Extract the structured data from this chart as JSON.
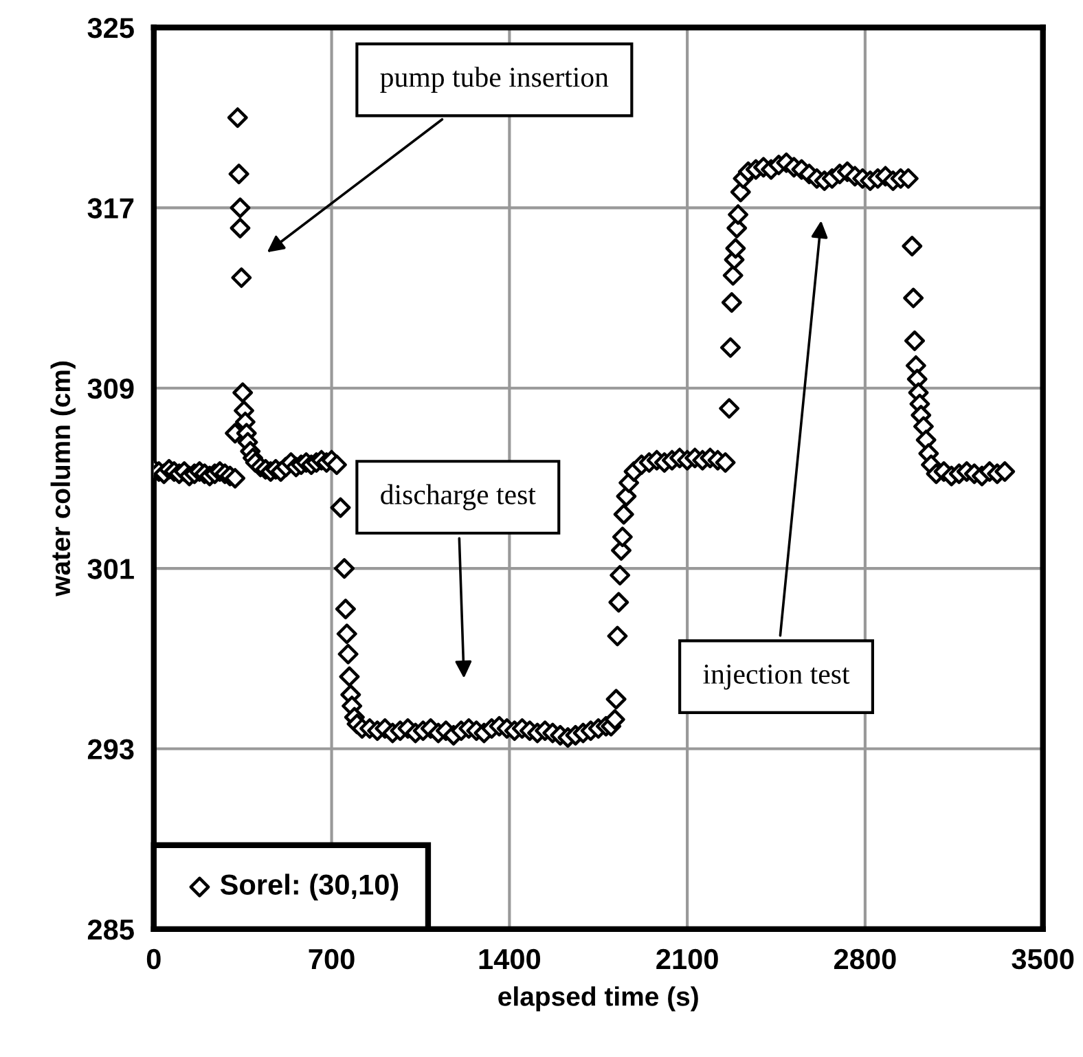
{
  "chart_data": {
    "type": "scatter",
    "xlabel": "elapsed time (s)",
    "ylabel": "water column (cm)",
    "xlim": [
      0,
      3500
    ],
    "xticks": [
      0,
      700,
      1400,
      2100,
      2800,
      3500
    ],
    "ylim": [
      285,
      325
    ],
    "yticks": [
      285,
      293,
      301,
      309,
      317,
      325
    ],
    "grid": true,
    "legend": "bottom left",
    "marker": "diamond",
    "annotations": [
      "pump tube insertion",
      "discharge test",
      "injection test"
    ],
    "series": [
      {
        "name": "Sorel: (30,10)",
        "color": "#000000",
        "x": [
          0,
          20,
          40,
          60,
          80,
          100,
          120,
          140,
          160,
          180,
          200,
          220,
          240,
          260,
          280,
          300,
          320,
          330,
          335,
          340,
          340,
          345,
          320,
          350,
          355,
          360,
          365,
          370,
          380,
          390,
          400,
          420,
          440,
          460,
          480,
          500,
          520,
          540,
          560,
          580,
          600,
          620,
          640,
          660,
          680,
          700,
          720,
          735,
          750,
          755,
          760,
          765,
          770,
          775,
          780,
          790,
          800,
          820,
          850,
          880,
          910,
          940,
          970,
          1000,
          1030,
          1060,
          1090,
          1120,
          1150,
          1180,
          1210,
          1240,
          1270,
          1300,
          1330,
          1360,
          1390,
          1420,
          1450,
          1480,
          1510,
          1540,
          1570,
          1600,
          1630,
          1660,
          1690,
          1720,
          1750,
          1780,
          1800,
          1815,
          1820,
          1825,
          1830,
          1835,
          1840,
          1845,
          1850,
          1860,
          1870,
          1890,
          1920,
          1950,
          1980,
          2010,
          2040,
          2070,
          2100,
          2130,
          2160,
          2190,
          2220,
          2250,
          2265,
          2270,
          2275,
          2280,
          2285,
          2290,
          2295,
          2300,
          2310,
          2320,
          2340,
          2370,
          2400,
          2430,
          2460,
          2490,
          2520,
          2550,
          2580,
          2610,
          2640,
          2670,
          2700,
          2730,
          2760,
          2790,
          2820,
          2850,
          2880,
          2910,
          2940,
          2970,
          2985,
          2990,
          2995,
          3000,
          3005,
          3010,
          3015,
          3020,
          3030,
          3040,
          3050,
          3060,
          3080,
          3110,
          3140,
          3170,
          3200,
          3230,
          3260,
          3290,
          3320,
          3350
        ],
        "values": [
          305.4,
          305.3,
          305.2,
          305.4,
          305.3,
          305.2,
          305.3,
          305.1,
          305.2,
          305.3,
          305.2,
          305.1,
          305.2,
          305.3,
          305.2,
          305.1,
          305.0,
          321.0,
          318.5,
          317.0,
          316.1,
          313.9,
          307.0,
          308.8,
          308.0,
          307.5,
          307.0,
          306.6,
          306.2,
          305.9,
          305.7,
          305.5,
          305.4,
          305.3,
          305.4,
          305.3,
          305.5,
          305.7,
          305.5,
          305.6,
          305.7,
          305.6,
          305.7,
          305.8,
          305.7,
          305.8,
          305.6,
          303.7,
          301.0,
          299.2,
          298.1,
          297.2,
          296.2,
          295.4,
          294.9,
          294.4,
          294.1,
          293.9,
          293.9,
          293.8,
          293.9,
          293.7,
          293.8,
          293.9,
          293.7,
          293.8,
          293.9,
          293.7,
          293.8,
          293.6,
          293.8,
          293.9,
          293.8,
          293.7,
          293.9,
          294.0,
          293.9,
          293.8,
          293.9,
          293.8,
          293.7,
          293.8,
          293.7,
          293.6,
          293.5,
          293.6,
          293.7,
          293.8,
          293.9,
          294.0,
          294.0,
          294.3,
          295.2,
          298.0,
          299.5,
          300.7,
          301.8,
          302.4,
          303.4,
          304.2,
          304.8,
          305.3,
          305.6,
          305.7,
          305.8,
          305.7,
          305.8,
          305.9,
          305.8,
          305.9,
          305.8,
          305.9,
          305.8,
          305.7,
          308.1,
          310.8,
          312.8,
          314.0,
          314.7,
          315.2,
          316.1,
          316.7,
          317.7,
          318.3,
          318.6,
          318.7,
          318.8,
          318.7,
          318.9,
          319.0,
          318.8,
          318.7,
          318.5,
          318.3,
          318.2,
          318.3,
          318.5,
          318.6,
          318.4,
          318.3,
          318.2,
          318.3,
          318.4,
          318.2,
          318.3,
          318.3,
          315.3,
          313.0,
          311.1,
          310.0,
          309.4,
          308.8,
          308.3,
          307.8,
          307.3,
          306.7,
          306.1,
          305.6,
          305.2,
          305.3,
          305.1,
          305.2,
          305.3,
          305.2,
          305.1,
          305.3,
          305.2,
          305.3
        ]
      }
    ]
  }
}
